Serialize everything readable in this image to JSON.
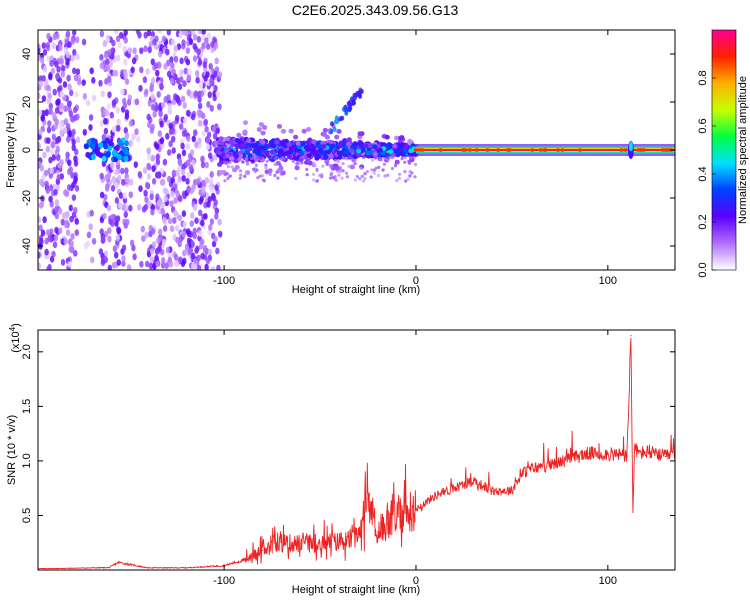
{
  "title": "C2E6.2025.343.09.56.G13",
  "chart_data": [
    {
      "type": "heatmap",
      "title": "C2E6.2025.343.09.56.G13",
      "xlabel": "Height of straight line (km)",
      "ylabel": "Frequency (Hz)",
      "xlim": [
        -197,
        135
      ],
      "ylim": [
        -50,
        50
      ],
      "x_ticks": [
        -100,
        0,
        100
      ],
      "y_ticks": [
        -40,
        -20,
        0,
        20,
        40
      ],
      "colorbar": {
        "label": "Normalized spectral amplitude",
        "range": [
          0,
          1
        ],
        "ticks": [
          0.0,
          0.2,
          0.4,
          0.6,
          0.8
        ],
        "colormap": [
          "#ffffff",
          "#b070ff",
          "#5a00ff",
          "#0040ff",
          "#00e0ff",
          "#00ff40",
          "#c8ff00",
          "#ffb000",
          "#ff2000",
          "#ff0090"
        ]
      },
      "features": [
        {
          "description": "scattered noise",
          "x_range": [
            -197,
            -102
          ],
          "freq_range": [
            -50,
            50
          ],
          "amplitude": 0.15
        },
        {
          "description": "broadening signal band",
          "x_range": [
            -103,
            0
          ],
          "freq_center": 0,
          "half_width": [
            5,
            2
          ],
          "amplitude": 0.35
        },
        {
          "description": "steady carrier line",
          "x_range": [
            0,
            135
          ],
          "freq_center": 0,
          "half_width": 1,
          "amplitude": 0.95
        },
        {
          "description": "drifting feature",
          "x_range": [
            -45,
            -28
          ],
          "freq_range": [
            8,
            25
          ],
          "amplitude": 0.3
        }
      ]
    },
    {
      "type": "line",
      "xlabel": "Height of straight line (km)",
      "ylabel": "SNR (10 * v/v)",
      "yscale_label": "(x10",
      "yscale_exponent": "4",
      "xlim": [
        -197,
        135
      ],
      "ylim": [
        0,
        22000
      ],
      "x_ticks": [
        -100,
        0,
        100
      ],
      "y_ticks": [
        5000,
        10000,
        15000,
        20000
      ],
      "y_tick_labels": [
        "0.5",
        "1.0",
        "1.5",
        "2.0"
      ],
      "color": "#ee2222",
      "series": [
        {
          "name": "SNR",
          "x": [
            -197,
            -180,
            -160,
            -155,
            -140,
            -120,
            -100,
            -90,
            -80,
            -70,
            -60,
            -50,
            -40,
            -30,
            -25,
            -20,
            -15,
            -10,
            -5,
            0,
            10,
            20,
            30,
            40,
            50,
            55,
            60,
            70,
            80,
            90,
            100,
            105,
            110,
            112,
            113,
            114,
            116,
            120,
            130,
            135
          ],
          "y": [
            120,
            160,
            220,
            700,
            200,
            200,
            400,
            900,
            1800,
            2500,
            2400,
            2500,
            2600,
            3000,
            6500,
            3500,
            4200,
            4600,
            5200,
            5600,
            6800,
            7500,
            8200,
            7200,
            7300,
            8800,
            9300,
            9600,
            10200,
            10700,
            10600,
            10600,
            10400,
            21500,
            5300,
            11200,
            10700,
            10800,
            10400,
            10700
          ]
        }
      ]
    }
  ]
}
